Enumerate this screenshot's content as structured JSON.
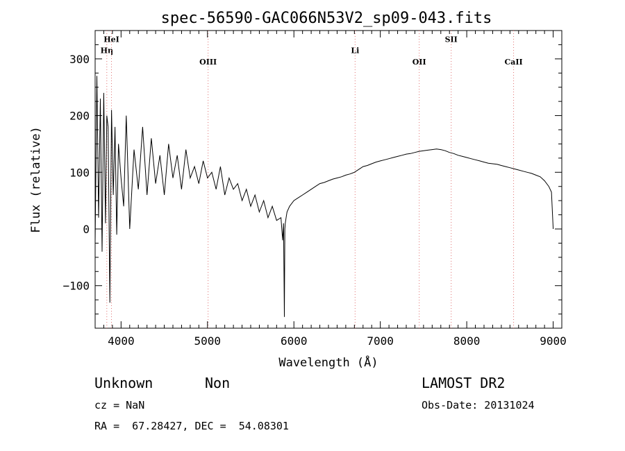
{
  "chart_data": {
    "type": "line",
    "title": "spec-56590-GAC066N53V2_sp09-043.fits",
    "xlabel": "Wavelength (Å)",
    "ylabel": "Flux (relative)",
    "xlim": [
      3700,
      9100
    ],
    "ylim": [
      -175,
      350
    ],
    "x_ticks": [
      4000,
      5000,
      6000,
      7000,
      8000,
      9000
    ],
    "y_ticks": [
      -100,
      0,
      100,
      200,
      300
    ],
    "x_tick_labels": [
      "4000",
      "5000",
      "6000",
      "7000",
      "8000",
      "9000"
    ],
    "y_tick_labels": [
      "−100",
      "0",
      "100",
      "200",
      "300"
    ],
    "grid": false,
    "line_color": "#000000",
    "marker_color": "#e07070",
    "series": [
      {
        "x": [
          3700,
          3720,
          3740,
          3760,
          3780,
          3800,
          3820,
          3835,
          3850,
          3870,
          3890,
          3910,
          3930,
          3950,
          3970,
          4000,
          4030,
          4060,
          4100,
          4150,
          4200,
          4250,
          4300,
          4350,
          4400,
          4450,
          4500,
          4550,
          4600,
          4650,
          4700,
          4750,
          4800,
          4850,
          4900,
          4950,
          5000,
          5050,
          5100,
          5150,
          5200,
          5250,
          5300,
          5350,
          5400,
          5450,
          5500,
          5550,
          5600,
          5650,
          5700,
          5750,
          5800,
          5850,
          5870,
          5880,
          5890,
          5895,
          5900,
          5910,
          5920,
          5950,
          6000,
          6050,
          6100,
          6150,
          6200,
          6250,
          6300,
          6350,
          6400,
          6450,
          6500,
          6550,
          6600,
          6650,
          6700,
          6750,
          6800,
          6850,
          6900,
          6950,
          7000,
          7050,
          7100,
          7150,
          7200,
          7250,
          7300,
          7350,
          7400,
          7450,
          7500,
          7550,
          7600,
          7650,
          7700,
          7750,
          7800,
          7850,
          7900,
          7950,
          8000,
          8050,
          8100,
          8150,
          8200,
          8250,
          8300,
          8350,
          8400,
          8450,
          8500,
          8550,
          8600,
          8650,
          8700,
          8750,
          8800,
          8850,
          8900,
          8950,
          8980,
          9000
        ],
        "y": [
          -25,
          270,
          20,
          230,
          -40,
          240,
          10,
          200,
          180,
          -130,
          210,
          60,
          180,
          -10,
          150,
          90,
          40,
          200,
          0,
          140,
          70,
          180,
          60,
          160,
          80,
          130,
          60,
          150,
          90,
          130,
          70,
          140,
          90,
          110,
          80,
          120,
          90,
          100,
          70,
          110,
          60,
          90,
          70,
          80,
          50,
          70,
          40,
          60,
          30,
          50,
          20,
          40,
          15,
          20,
          -20,
          10,
          -155,
          0,
          10,
          20,
          30,
          40,
          50,
          55,
          60,
          65,
          70,
          75,
          80,
          82,
          85,
          88,
          90,
          92,
          95,
          97,
          100,
          105,
          110,
          112,
          115,
          118,
          120,
          122,
          124,
          126,
          128,
          130,
          132,
          133,
          135,
          137,
          138,
          139,
          140,
          141,
          140,
          138,
          135,
          133,
          130,
          128,
          126,
          124,
          122,
          120,
          118,
          116,
          115,
          114,
          112,
          110,
          108,
          106,
          104,
          102,
          100,
          98,
          95,
          92,
          85,
          75,
          65,
          0
        ]
      }
    ],
    "line_markers": [
      {
        "label": "Hη",
        "x": 3835,
        "label_y": 310
      },
      {
        "label": "HeI",
        "x": 3889,
        "label_y": 330
      },
      {
        "label": "OIII",
        "x": 5007,
        "label_y": 290
      },
      {
        "label": "Li",
        "x": 6708,
        "label_y": 310
      },
      {
        "label": "OII",
        "x": 7450,
        "label_y": 290
      },
      {
        "label": "SII",
        "x": 7820,
        "label_y": 330
      },
      {
        "label": "CaII",
        "x": 8542,
        "label_y": 290
      }
    ]
  },
  "info": {
    "class": "Unknown",
    "subclass": "Non",
    "survey": "LAMOST DR2",
    "cz": "cz = NaN",
    "obs_date": "Obs-Date: 20131024",
    "coords": "RA =  67.28427, DEC =  54.08301"
  }
}
